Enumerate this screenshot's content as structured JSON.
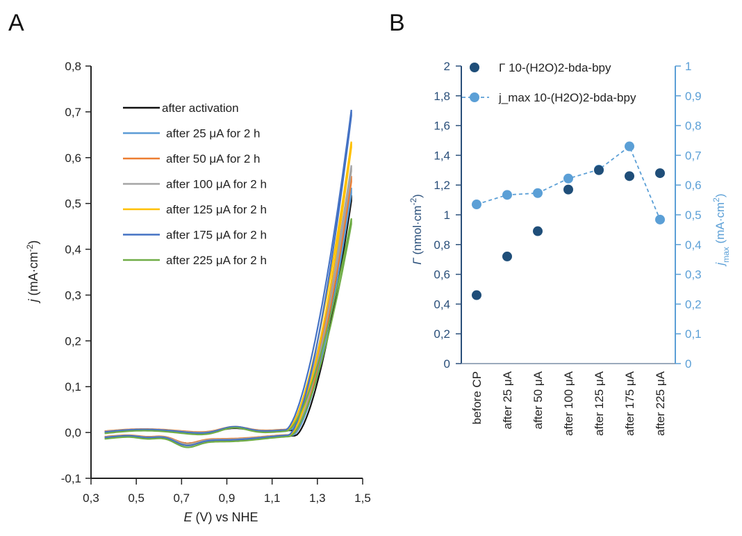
{
  "panels": {
    "a_label": "A",
    "b_label": "B"
  },
  "chart_data": [
    {
      "type": "line",
      "panel": "A",
      "xlabel_italic": "E",
      "xlabel_rest": " (V) vs NHE",
      "ylabel_italic": "j",
      "ylabel_rest": " (mA·cm",
      "ylabel_sup": "-2",
      "ylabel_close": ")",
      "xlim": [
        0.3,
        1.5
      ],
      "ylim": [
        -0.1,
        0.8
      ],
      "xticks": [
        "0,3",
        "0,5",
        "0,7",
        "0,9",
        "1,1",
        "1,3",
        "1,5"
      ],
      "yticks": [
        "-0,1",
        "0,0",
        "0,1",
        "0,2",
        "0,3",
        "0,4",
        "0,5",
        "0,6",
        "0,7",
        "0,8"
      ],
      "grid": false,
      "legend_position": "top-left",
      "series": [
        {
          "name": "after activation",
          "color": "#111111",
          "end_j": 0.535,
          "onset": 1.19,
          "base": -0.005
        },
        {
          "name": "after 25 μA for 2 h",
          "color": "#5b9bd5",
          "end_j": 0.55,
          "onset": 1.18,
          "base": -0.004
        },
        {
          "name": "after 50 μA for 2 h",
          "color": "#ed7d31",
          "end_j": 0.575,
          "onset": 1.175,
          "base": -0.003
        },
        {
          "name": "after 100 μA for 2 h",
          "color": "#a5a5a5",
          "end_j": 0.6,
          "onset": 1.17,
          "base": -0.004
        },
        {
          "name": "after 125 μA for 2 h",
          "color": "#ffc000",
          "end_j": 0.655,
          "onset": 1.165,
          "base": -0.006
        },
        {
          "name": "after 175 μA for 2 h",
          "color": "#4472c4",
          "end_j": 0.725,
          "onset": 1.16,
          "base": -0.005
        },
        {
          "name": "after 225 μA for 2 h",
          "color": "#70ad47",
          "end_j": 0.485,
          "onset": 1.165,
          "base": -0.008
        }
      ]
    },
    {
      "type": "scatter",
      "panel": "B",
      "categories": [
        "before CP",
        "after 25 μA",
        "after 50 μA",
        "after 100 μA",
        "after 125 μA",
        "after 175 μA",
        "after 225 μA"
      ],
      "left_axis": {
        "label_italic": "Γ",
        "label_rest": " (nmol·cm",
        "label_sup": "-2",
        "label_close": ")",
        "ylim": [
          0,
          2
        ],
        "ticks": [
          "0",
          "0,2",
          "0,4",
          "0,6",
          "0,8",
          "1",
          "1,2",
          "1,4",
          "1,6",
          "1,8",
          "2"
        ],
        "color": "#2a4f7a"
      },
      "right_axis": {
        "label_italic": "j",
        "label_sub": "max",
        "label_rest": " (mA·cm",
        "label_sup": "2",
        "label_close": ")",
        "ylim": [
          0,
          1
        ],
        "ticks": [
          "0",
          "0,1",
          "0,2",
          "0,3",
          "0,4",
          "0,5",
          "0,6",
          "0,7",
          "0,8",
          "0,9",
          "1"
        ],
        "color": "#5b9fd6"
      },
      "grid": false,
      "legend_position": "top",
      "series": [
        {
          "name": "Γ 10-(H2O)2-bda-bpy",
          "axis": "left",
          "color": "#1f4e79",
          "values": [
            0.46,
            0.72,
            0.89,
            1.17,
            1.3,
            1.26,
            1.28
          ]
        },
        {
          "name": "j_max 10-(H2O)2-bda-bpy",
          "axis": "right",
          "color": "#5b9fd6",
          "dashed": true,
          "values": [
            0.535,
            0.567,
            0.573,
            0.622,
            0.652,
            0.73,
            0.484
          ]
        }
      ]
    }
  ]
}
